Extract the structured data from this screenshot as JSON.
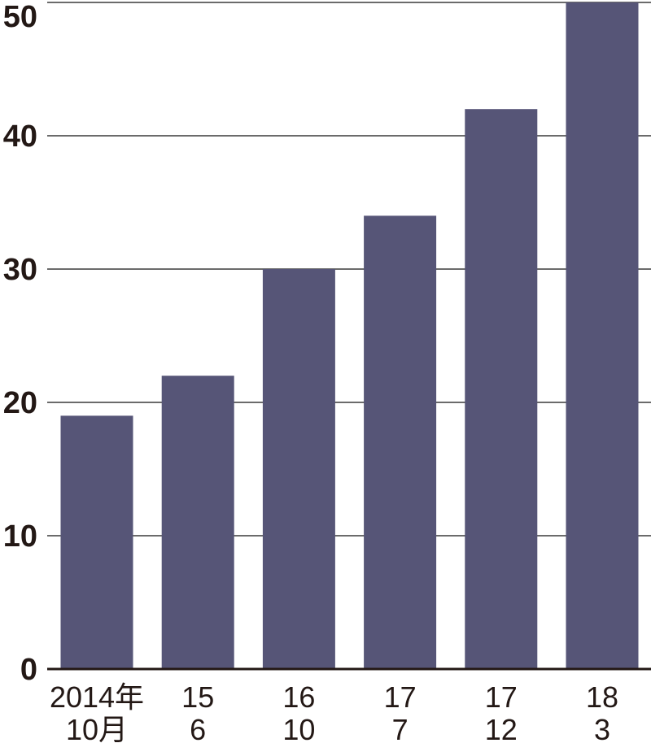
{
  "chart_data": {
    "type": "bar",
    "categories": [
      {
        "line1": "2014年",
        "line2": "10月"
      },
      {
        "line1": "15",
        "line2": "6"
      },
      {
        "line1": "16",
        "line2": "10"
      },
      {
        "line1": "17",
        "line2": "7"
      },
      {
        "line1": "17",
        "line2": "12"
      },
      {
        "line1": "18",
        "line2": "3"
      }
    ],
    "values": [
      19,
      22,
      30,
      34,
      42,
      50
    ],
    "ylim": [
      0,
      50
    ],
    "yticks": [
      0,
      10,
      20,
      30,
      40,
      50
    ],
    "ytick_labels": [
      "0",
      "10",
      "20",
      "30",
      "40",
      "50"
    ],
    "grid": true,
    "colors": {
      "bar": "#565577",
      "grid": "#3a3a3a",
      "text": "#231815"
    }
  }
}
